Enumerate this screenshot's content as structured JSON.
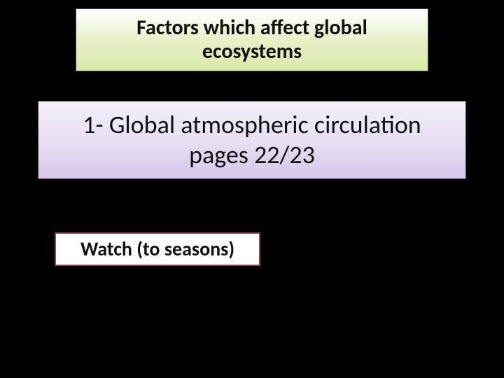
{
  "slide": {
    "background_color": "#000000",
    "title_box": {
      "text": "Factors which affect global ecosystems",
      "font_size": 30,
      "font_weight": 700,
      "text_color": "#111111",
      "gradient_top": "#ffffff",
      "gradient_mid": "#e8f0c8",
      "gradient_bottom": "#d8e8a8",
      "border_color": "#444444"
    },
    "subtitle_box": {
      "text": "1- Global atmospheric circulation pages 22/23",
      "font_size": 36,
      "font_weight": 400,
      "text_color": "#111111",
      "gradient_top": "#f4f0fa",
      "gradient_mid": "#e6ddf2",
      "gradient_bottom": "#d6c6ea",
      "border_color": "#444444"
    },
    "link_box": {
      "text": "Watch (to seasons)",
      "font_size": 28,
      "font_weight": 700,
      "text_color": "#111111",
      "background_color": "#ffffff",
      "border_color": "#8b4a4a"
    }
  }
}
